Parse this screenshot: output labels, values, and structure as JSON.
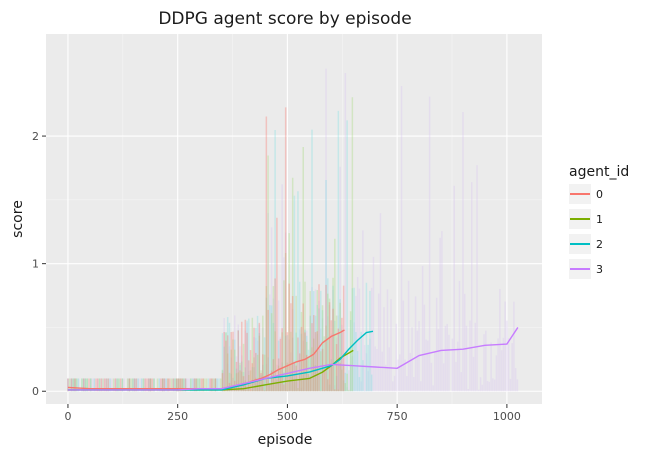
{
  "chart_data": {
    "type": "line",
    "title": "DDPG agent score by episode",
    "xlabel": "episode",
    "ylabel": "score",
    "xlim": [
      -50,
      1080
    ],
    "ylim": [
      -0.1,
      2.8
    ],
    "x_ticks": [
      0,
      250,
      500,
      750,
      1000
    ],
    "y_ticks": [
      0,
      1,
      2
    ],
    "grid": true,
    "legend_position": "right",
    "legend_title": "agent_id",
    "series": [
      {
        "name": "0",
        "color": "#F8766D",
        "raw_color": "#F8766D",
        "x": [
          0,
          50,
          100,
          150,
          200,
          250,
          300,
          350,
          400,
          420,
          440,
          460,
          480,
          500,
          520,
          540,
          560,
          580,
          600,
          620,
          630
        ],
        "y": [
          0.03,
          0.02,
          0.02,
          0.02,
          0.02,
          0.02,
          0.02,
          0.02,
          0.05,
          0.08,
          0.1,
          0.13,
          0.17,
          0.2,
          0.23,
          0.25,
          0.29,
          0.38,
          0.43,
          0.46,
          0.48
        ]
      },
      {
        "name": "1",
        "color": "#7CAE00",
        "raw_color": "#A3D977",
        "x": [
          0,
          50,
          100,
          150,
          200,
          250,
          300,
          350,
          400,
          450,
          500,
          550,
          580,
          600,
          620,
          640,
          650
        ],
        "y": [
          0.01,
          0.01,
          0.01,
          0.01,
          0.01,
          0.01,
          0.01,
          0.01,
          0.02,
          0.05,
          0.08,
          0.1,
          0.15,
          0.2,
          0.26,
          0.3,
          0.32
        ]
      },
      {
        "name": "2",
        "color": "#00BFC4",
        "raw_color": "#7FDFE2",
        "x": [
          0,
          50,
          100,
          150,
          200,
          250,
          300,
          350,
          400,
          450,
          500,
          550,
          600,
          620,
          640,
          660,
          680,
          695
        ],
        "y": [
          0.01,
          0.01,
          0.01,
          0.01,
          0.01,
          0.01,
          0.01,
          0.01,
          0.05,
          0.1,
          0.12,
          0.15,
          0.2,
          0.25,
          0.33,
          0.4,
          0.46,
          0.47
        ]
      },
      {
        "name": "3",
        "color": "#C77CFF",
        "raw_color": "#D8C4F0",
        "x": [
          0,
          50,
          100,
          150,
          200,
          250,
          300,
          350,
          400,
          450,
          500,
          550,
          600,
          650,
          700,
          750,
          800,
          850,
          900,
          950,
          1000,
          1025
        ],
        "y": [
          0.01,
          0.01,
          0.01,
          0.01,
          0.01,
          0.01,
          0.02,
          0.02,
          0.06,
          0.1,
          0.14,
          0.18,
          0.21,
          0.2,
          0.19,
          0.18,
          0.28,
          0.32,
          0.33,
          0.36,
          0.37,
          0.5
        ]
      }
    ],
    "raw_episode_scores_note_removed": null
  }
}
